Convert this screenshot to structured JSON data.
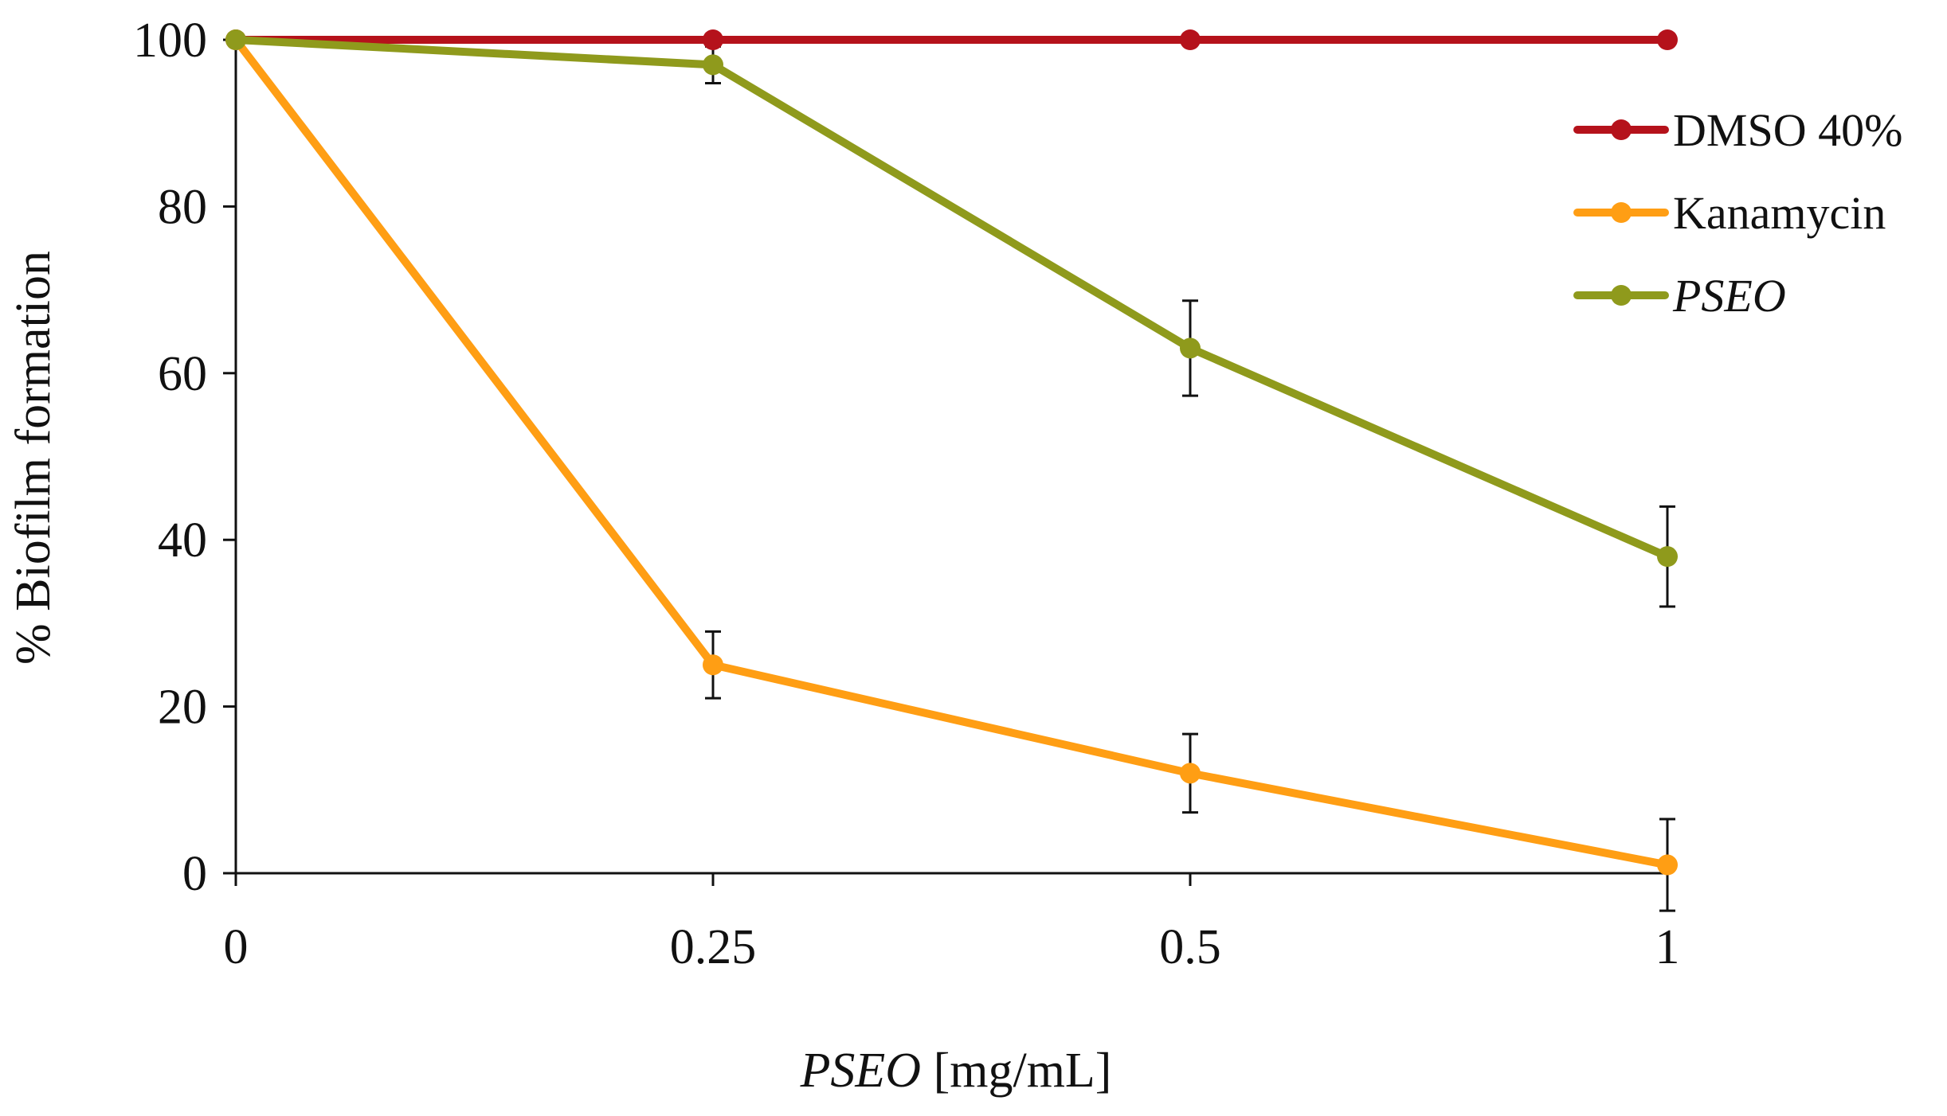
{
  "chart_data": {
    "type": "line",
    "title": "",
    "x": [
      "0",
      "0.25",
      "0.5",
      "1"
    ],
    "xlabel_italic": "PSEO",
    "xlabel_rest": " [mg/mL]",
    "ylabel": "% Biofilm formation",
    "ylim": [
      0,
      100
    ],
    "yticks": [
      "0",
      "20",
      "40",
      "60",
      "80",
      "100"
    ],
    "grid": false,
    "legend_position": "right",
    "series": [
      {
        "name": "DMSO 40%",
        "italic": false,
        "color": "#b5121b",
        "values": [
          100,
          100,
          100,
          100
        ],
        "errors": [
          0,
          0,
          0,
          0
        ]
      },
      {
        "name": "Kanamycin",
        "italic": false,
        "color": "#ff9e14",
        "values": [
          100,
          25,
          12,
          1
        ],
        "errors": [
          0,
          4,
          4.7,
          5.5
        ]
      },
      {
        "name": "PSEO",
        "italic": true,
        "color": "#8f9a1c",
        "values": [
          100,
          97,
          63,
          38
        ],
        "errors": [
          0,
          2.2,
          5.7,
          6
        ]
      }
    ]
  }
}
